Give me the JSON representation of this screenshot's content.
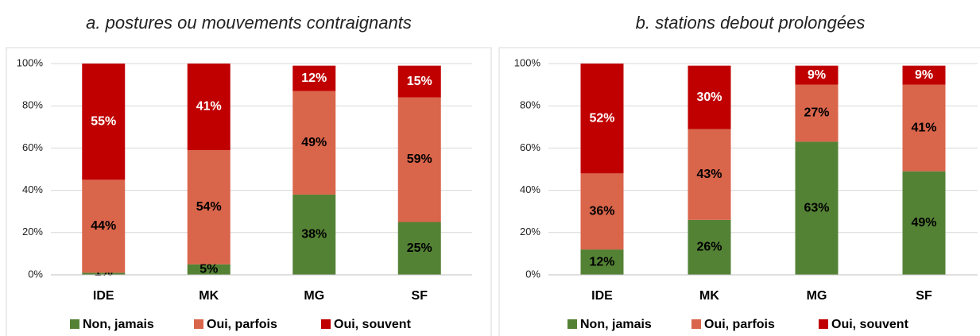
{
  "chart_data": [
    {
      "type": "stacked-bar",
      "title": "a. postures ou mouvements contraignants",
      "categories": [
        "IDE",
        "MK",
        "MG",
        "SF"
      ],
      "series": [
        {
          "name": "Non, jamais",
          "color": "#548235",
          "label_color": "#000000",
          "values": [
            1,
            5,
            38,
            25
          ],
          "value_labels": [
            "1%",
            "5%",
            "38%",
            "25%"
          ]
        },
        {
          "name": "Oui, parfois",
          "color": "#d9654b",
          "label_color": "#000000",
          "values": [
            44,
            54,
            49,
            59
          ],
          "value_labels": [
            "44%",
            "54%",
            "49%",
            "59%"
          ]
        },
        {
          "name": "Oui, souvent",
          "color": "#c00000",
          "label_color": "#ffffff",
          "values": [
            55,
            41,
            12,
            15
          ],
          "value_labels": [
            "55%",
            "41%",
            "12%",
            "15%"
          ]
        }
      ],
      "ylim": [
        0,
        100
      ],
      "yticks": [
        {
          "value": 0,
          "label": "0%"
        },
        {
          "value": 20,
          "label": "20%"
        },
        {
          "value": 40,
          "label": "40%"
        },
        {
          "value": 60,
          "label": "60%"
        },
        {
          "value": 80,
          "label": "80%"
        },
        {
          "value": 100,
          "label": "100%"
        }
      ],
      "grid": true,
      "legend": "bottom"
    },
    {
      "type": "stacked-bar",
      "title": "b. stations debout prolongées",
      "categories": [
        "IDE",
        "MK",
        "MG",
        "SF"
      ],
      "series": [
        {
          "name": "Non, jamais",
          "color": "#548235",
          "label_color": "#000000",
          "values": [
            12,
            26,
            63,
            49
          ],
          "value_labels": [
            "12%",
            "26%",
            "63%",
            "49%"
          ]
        },
        {
          "name": "Oui, parfois",
          "color": "#d9654b",
          "label_color": "#000000",
          "values": [
            36,
            43,
            27,
            41
          ],
          "value_labels": [
            "36%",
            "43%",
            "27%",
            "41%"
          ]
        },
        {
          "name": "Oui, souvent",
          "color": "#c00000",
          "label_color": "#ffffff",
          "values": [
            52,
            30,
            9,
            9
          ],
          "value_labels": [
            "52%",
            "30%",
            "9%",
            "9%"
          ]
        }
      ],
      "ylim": [
        0,
        100
      ],
      "yticks": [
        {
          "value": 0,
          "label": "0%"
        },
        {
          "value": 20,
          "label": "20%"
        },
        {
          "value": 40,
          "label": "40%"
        },
        {
          "value": 60,
          "label": "60%"
        },
        {
          "value": 80,
          "label": "80%"
        },
        {
          "value": 100,
          "label": "100%"
        }
      ],
      "grid": true,
      "legend": "bottom"
    }
  ]
}
